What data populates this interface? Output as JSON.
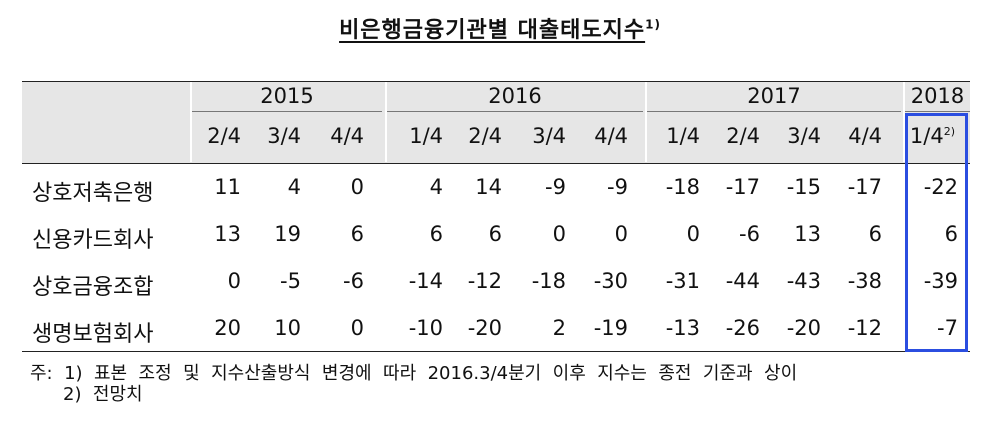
{
  "title": "비은행금융기관별 대출태도지수",
  "title_note": "1)",
  "years": [
    "2015",
    "2016",
    "2017",
    "2018"
  ],
  "quarters": [
    {
      "label": "2/4",
      "sup": ""
    },
    {
      "label": "3/4",
      "sup": ""
    },
    {
      "label": "4/4",
      "sup": ""
    },
    {
      "label": "1/4",
      "sup": ""
    },
    {
      "label": "2/4",
      "sup": ""
    },
    {
      "label": "3/4",
      "sup": ""
    },
    {
      "label": "4/4",
      "sup": ""
    },
    {
      "label": "1/4",
      "sup": ""
    },
    {
      "label": "2/4",
      "sup": ""
    },
    {
      "label": "3/4",
      "sup": ""
    },
    {
      "label": "4/4",
      "sup": ""
    },
    {
      "label": "1/4",
      "sup": "2)"
    }
  ],
  "rows": [
    {
      "label": "상호저축은행",
      "values": [
        "11",
        "4",
        "0",
        "4",
        "14",
        "-9",
        "-9",
        "-18",
        "-17",
        "-15",
        "-17",
        "-22"
      ]
    },
    {
      "label": "신용카드회사",
      "values": [
        "13",
        "19",
        "6",
        "6",
        "6",
        "0",
        "0",
        "0",
        "-6",
        "13",
        "6",
        "6"
      ]
    },
    {
      "label": "상호금융조합",
      "values": [
        "0",
        "-5",
        "-6",
        "-14",
        "-12",
        "-18",
        "-30",
        "-31",
        "-44",
        "-43",
        "-38",
        "-39"
      ]
    },
    {
      "label": "생명보험회사",
      "values": [
        "20",
        "10",
        "0",
        "-10",
        "-20",
        "2",
        "-19",
        "-13",
        "-26",
        "-20",
        "-12",
        "-7"
      ]
    }
  ],
  "notes": {
    "line1": "주:  1)  표본  조정  및  지수산출방식  변경에  따라  2016.3/4분기  이후  지수는  종전  기준과  상이",
    "line2": "2)  전망치"
  },
  "highlight_color": "#2b4ee0"
}
